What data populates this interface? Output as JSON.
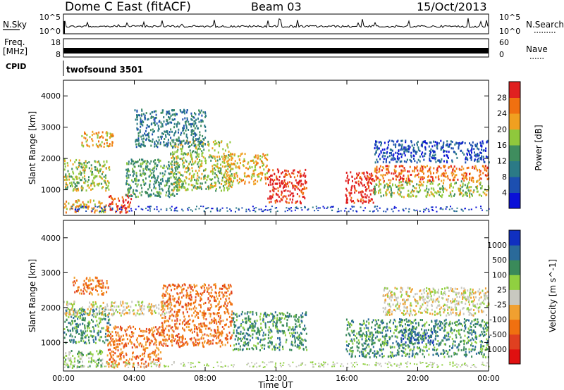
{
  "header": {
    "title": "Dome C East (fitACF)",
    "beam": "Beam 03",
    "date": "15/Oct/2013"
  },
  "nsky_panel": {
    "label": "N.Sky",
    "left_ticks": [
      "10^5",
      "10^0"
    ],
    "right_ticks": [
      "10^5",
      "10^0"
    ],
    "right_label": "N.Search"
  },
  "freq_panel": {
    "label_top": "Freq.",
    "label_bottom": "[MHz]",
    "left_ticks": [
      "18",
      "8"
    ],
    "right_ticks": [
      "60",
      "0"
    ],
    "right_label": "Nave"
  },
  "cpid_panel": {
    "label": "CPID",
    "value": "twofsound 3501"
  },
  "chart_data": [
    {
      "type": "heatmap",
      "name": "power",
      "ylabel": "Slant Range [km]",
      "xlabel": "Time UT",
      "x_ticks": [
        "00:00",
        "04:00",
        "08:00",
        "12:00",
        "16:00",
        "20:00",
        "00:00"
      ],
      "xlim_hours": [
        0,
        24
      ],
      "ylim_km": [
        180,
        4500
      ],
      "y_ticks": [
        1000,
        2000,
        3000,
        4000
      ],
      "colorbar": {
        "label": "Power [dB]",
        "ticks": [
          "4",
          "8",
          "12",
          "16",
          "20",
          "24",
          "28"
        ],
        "colors": [
          "#0a10d8",
          "#1c4fb0",
          "#2b7a86",
          "#3f8d5e",
          "#8fc83c",
          "#f0a020",
          "#f07010",
          "#e02020"
        ]
      },
      "regions": [
        {
          "t0": 0.0,
          "t1": 2.6,
          "r0": 1000,
          "r1": 2000,
          "level": 4
        },
        {
          "t0": 0.0,
          "t1": 2.4,
          "r0": 300,
          "r1": 700,
          "level": 5
        },
        {
          "t0": 2.5,
          "t1": 3.8,
          "r0": 300,
          "r1": 900,
          "level": 7
        },
        {
          "t0": 1.0,
          "t1": 2.8,
          "r0": 2400,
          "r1": 2900,
          "level": 5
        },
        {
          "t0": 3.5,
          "t1": 6.5,
          "r0": 800,
          "r1": 2000,
          "level": 3
        },
        {
          "t0": 6.0,
          "t1": 9.5,
          "r0": 1000,
          "r1": 2600,
          "level": 4
        },
        {
          "t0": 9.0,
          "t1": 11.5,
          "r0": 1200,
          "r1": 2200,
          "level": 5
        },
        {
          "t0": 11.5,
          "t1": 13.7,
          "r0": 600,
          "r1": 1700,
          "level": 7
        },
        {
          "t0": 15.9,
          "t1": 17.5,
          "r0": 600,
          "r1": 1600,
          "level": 7
        },
        {
          "t0": 17.5,
          "t1": 24.0,
          "r0": 1300,
          "r1": 1800,
          "level": 6
        },
        {
          "t0": 17.5,
          "t1": 24.0,
          "r0": 800,
          "r1": 1300,
          "level": 4
        },
        {
          "t0": 17.5,
          "t1": 24.0,
          "r0": 1900,
          "r1": 2600,
          "level": 1
        },
        {
          "t0": 4.0,
          "t1": 8.0,
          "r0": 2400,
          "r1": 3600,
          "level": 2
        }
      ]
    },
    {
      "type": "heatmap",
      "name": "velocity",
      "ylabel": "Slant Range [km]",
      "xlabel": "Time UT",
      "x_ticks": [
        "00:00",
        "04:00",
        "08:00",
        "12:00",
        "16:00",
        "20:00",
        "00:00"
      ],
      "xlim_hours": [
        0,
        24
      ],
      "ylim_km": [
        180,
        4500
      ],
      "y_ticks": [
        1000,
        2000,
        3000,
        4000
      ],
      "colorbar": {
        "label": "Velocity [m s^-1]",
        "ticks": [
          "1000",
          "500",
          "100",
          "25",
          "-25",
          "-100",
          "-500",
          "-1000"
        ],
        "colors": [
          "#1030c0",
          "#2a6a9a",
          "#3a8a5a",
          "#90d040",
          "#c8c8c0",
          "#f0a030",
          "#f07010",
          "#e04020",
          "#e01010"
        ]
      },
      "regions": [
        {
          "t0": 0.0,
          "t1": 2.6,
          "r0": 1000,
          "r1": 2000,
          "level": 2
        },
        {
          "t0": 0.0,
          "t1": 2.2,
          "r0": 300,
          "r1": 800,
          "level": 3
        },
        {
          "t0": 2.4,
          "t1": 5.5,
          "r0": 300,
          "r1": 1500,
          "level": 6
        },
        {
          "t0": 0.5,
          "t1": 2.5,
          "r0": 2400,
          "r1": 2900,
          "level": 6
        },
        {
          "t0": 5.5,
          "t1": 9.5,
          "r0": 900,
          "r1": 2700,
          "level": 6
        },
        {
          "t0": 9.5,
          "t1": 13.7,
          "r0": 800,
          "r1": 1900,
          "level": 2
        },
        {
          "t0": 0.0,
          "t1": 6.0,
          "r0": 1800,
          "r1": 2200,
          "level": 4
        },
        {
          "t0": 15.9,
          "t1": 24.0,
          "r0": 600,
          "r1": 1700,
          "level": 2
        },
        {
          "t0": 18.0,
          "t1": 24.0,
          "r0": 1800,
          "r1": 2600,
          "level": 4
        },
        {
          "t0": 19.0,
          "t1": 21.0,
          "r0": 1000,
          "r1": 1400,
          "level": 1
        }
      ]
    }
  ]
}
